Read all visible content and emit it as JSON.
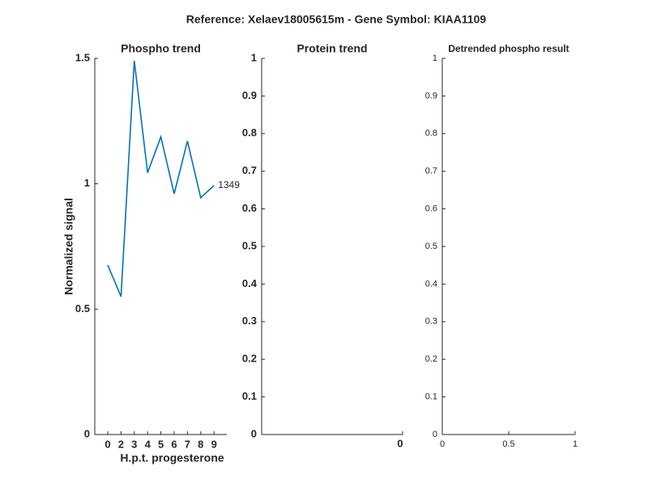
{
  "title": "Reference:  Xelaev18005615m - Gene Symbol:  KIAA1109",
  "chart_data": [
    {
      "type": "line",
      "title": "Phospho trend",
      "xlabel": "H.p.t. progesterone",
      "ylabel": "Normalized signal",
      "categories": [
        "0",
        "2",
        "3",
        "4",
        "5",
        "6",
        "7",
        "8",
        "9"
      ],
      "values": [
        0.676,
        0.55,
        1.49,
        1.044,
        1.187,
        0.96,
        1.17,
        0.944,
        0.993
      ],
      "annotation": "1349",
      "color": "#0072bd",
      "ylim": [
        0,
        1.5
      ],
      "yticks": [
        0,
        0.5,
        1,
        1.5
      ]
    },
    {
      "type": "empty",
      "title": "Protein trend",
      "xlim": [
        -1,
        0
      ],
      "xticks": [
        0
      ],
      "ylim": [
        0,
        1
      ],
      "yticks": [
        0,
        0.1,
        0.2,
        0.3,
        0.4,
        0.5,
        0.6,
        0.7,
        0.8,
        0.9,
        1
      ]
    },
    {
      "type": "empty",
      "title": "Detrended phospho result",
      "xlim": [
        0,
        1
      ],
      "xticks": [
        0,
        0.5,
        1
      ],
      "ylim": [
        0,
        1
      ],
      "yticks": [
        0,
        0.1,
        0.2,
        0.3,
        0.4,
        0.5,
        0.6,
        0.7,
        0.8,
        0.9,
        1
      ]
    }
  ]
}
